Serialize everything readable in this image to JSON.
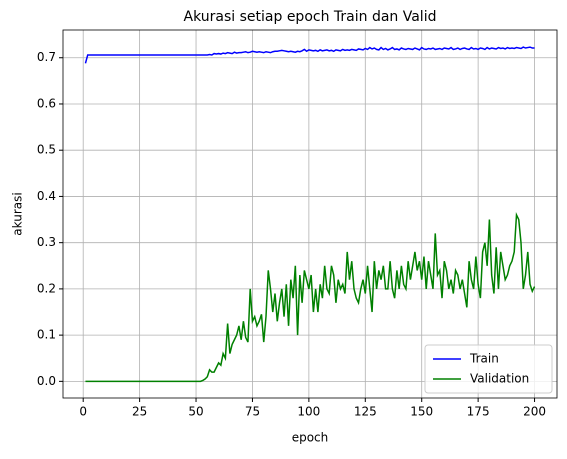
{
  "chart_data": {
    "type": "line",
    "title": "Akurasi setiap epoch Train dan Valid",
    "x_label": "epoch",
    "y_label": "akurasi",
    "x": [
      1,
      2,
      3,
      4,
      5,
      6,
      7,
      8,
      9,
      10,
      11,
      12,
      13,
      14,
      15,
      16,
      17,
      18,
      19,
      20,
      21,
      22,
      23,
      24,
      25,
      26,
      27,
      28,
      29,
      30,
      31,
      32,
      33,
      34,
      35,
      36,
      37,
      38,
      39,
      40,
      41,
      42,
      43,
      44,
      45,
      46,
      47,
      48,
      49,
      50,
      51,
      52,
      53,
      54,
      55,
      56,
      57,
      58,
      59,
      60,
      61,
      62,
      63,
      64,
      65,
      66,
      67,
      68,
      69,
      70,
      71,
      72,
      73,
      74,
      75,
      76,
      77,
      78,
      79,
      80,
      81,
      82,
      83,
      84,
      85,
      86,
      87,
      88,
      89,
      90,
      91,
      92,
      93,
      94,
      95,
      96,
      97,
      98,
      99,
      100,
      101,
      102,
      103,
      104,
      105,
      106,
      107,
      108,
      109,
      110,
      111,
      112,
      113,
      114,
      115,
      116,
      117,
      118,
      119,
      120,
      121,
      122,
      123,
      124,
      125,
      126,
      127,
      128,
      129,
      130,
      131,
      132,
      133,
      134,
      135,
      136,
      137,
      138,
      139,
      140,
      141,
      142,
      143,
      144,
      145,
      146,
      147,
      148,
      149,
      150,
      151,
      152,
      153,
      154,
      155,
      156,
      157,
      158,
      159,
      160,
      161,
      162,
      163,
      164,
      165,
      166,
      167,
      168,
      169,
      170,
      171,
      172,
      173,
      174,
      175,
      176,
      177,
      178,
      179,
      180,
      181,
      182,
      183,
      184,
      185,
      186,
      187,
      188,
      189,
      190,
      191,
      192,
      193,
      194,
      195,
      196,
      197,
      198,
      199,
      200
    ],
    "series": [
      {
        "name": "Train",
        "color": "#0000ff",
        "values": [
          0.688,
          0.706,
          0.706,
          0.706,
          0.706,
          0.706,
          0.706,
          0.706,
          0.706,
          0.706,
          0.706,
          0.706,
          0.706,
          0.706,
          0.706,
          0.706,
          0.706,
          0.706,
          0.706,
          0.706,
          0.706,
          0.706,
          0.706,
          0.706,
          0.706,
          0.706,
          0.706,
          0.706,
          0.706,
          0.706,
          0.706,
          0.706,
          0.706,
          0.706,
          0.706,
          0.706,
          0.706,
          0.706,
          0.706,
          0.706,
          0.706,
          0.706,
          0.706,
          0.706,
          0.706,
          0.706,
          0.706,
          0.706,
          0.706,
          0.706,
          0.706,
          0.706,
          0.706,
          0.706,
          0.706,
          0.707,
          0.706,
          0.709,
          0.708,
          0.709,
          0.708,
          0.71,
          0.709,
          0.711,
          0.71,
          0.709,
          0.712,
          0.71,
          0.711,
          0.711,
          0.712,
          0.713,
          0.711,
          0.712,
          0.714,
          0.713,
          0.712,
          0.713,
          0.712,
          0.711,
          0.713,
          0.712,
          0.711,
          0.713,
          0.714,
          0.714,
          0.715,
          0.716,
          0.715,
          0.714,
          0.713,
          0.714,
          0.713,
          0.712,
          0.714,
          0.713,
          0.715,
          0.718,
          0.714,
          0.717,
          0.716,
          0.715,
          0.716,
          0.714,
          0.717,
          0.715,
          0.716,
          0.717,
          0.715,
          0.716,
          0.714,
          0.717,
          0.716,
          0.715,
          0.718,
          0.716,
          0.717,
          0.716,
          0.718,
          0.717,
          0.716,
          0.719,
          0.718,
          0.717,
          0.72,
          0.718,
          0.722,
          0.719,
          0.721,
          0.718,
          0.717,
          0.722,
          0.718,
          0.72,
          0.717,
          0.719,
          0.722,
          0.718,
          0.719,
          0.717,
          0.721,
          0.719,
          0.718,
          0.72,
          0.719,
          0.718,
          0.721,
          0.719,
          0.717,
          0.722,
          0.719,
          0.718,
          0.72,
          0.719,
          0.721,
          0.718,
          0.719,
          0.72,
          0.718,
          0.721,
          0.72,
          0.719,
          0.722,
          0.718,
          0.719,
          0.721,
          0.718,
          0.72,
          0.721,
          0.719,
          0.718,
          0.722,
          0.719,
          0.72,
          0.718,
          0.721,
          0.72,
          0.718,
          0.722,
          0.719,
          0.721,
          0.72,
          0.719,
          0.722,
          0.72,
          0.721,
          0.719,
          0.722,
          0.72,
          0.721,
          0.72,
          0.722,
          0.721,
          0.72,
          0.723,
          0.721,
          0.722,
          0.723,
          0.721,
          0.721
        ]
      },
      {
        "name": "Validation",
        "color": "#008000",
        "values": [
          0,
          0,
          0,
          0,
          0,
          0,
          0,
          0,
          0,
          0,
          0,
          0,
          0,
          0,
          0,
          0,
          0,
          0,
          0,
          0,
          0,
          0,
          0,
          0,
          0,
          0,
          0,
          0,
          0,
          0,
          0,
          0,
          0,
          0,
          0,
          0,
          0,
          0,
          0,
          0,
          0,
          0,
          0,
          0,
          0,
          0,
          0,
          0,
          0,
          0,
          0,
          0,
          0.002,
          0.005,
          0.01,
          0.025,
          0.02,
          0.02,
          0.03,
          0.04,
          0.035,
          0.06,
          0.05,
          0.125,
          0.06,
          0.08,
          0.09,
          0.1,
          0.12,
          0.09,
          0.13,
          0.095,
          0.085,
          0.2,
          0.13,
          0.14,
          0.12,
          0.13,
          0.145,
          0.085,
          0.14,
          0.24,
          0.2,
          0.15,
          0.19,
          0.13,
          0.17,
          0.2,
          0.14,
          0.21,
          0.12,
          0.22,
          0.18,
          0.25,
          0.1,
          0.23,
          0.17,
          0.24,
          0.22,
          0.2,
          0.23,
          0.15,
          0.2,
          0.15,
          0.21,
          0.18,
          0.25,
          0.2,
          0.19,
          0.25,
          0.23,
          0.17,
          0.22,
          0.2,
          0.21,
          0.19,
          0.28,
          0.22,
          0.26,
          0.2,
          0.18,
          0.17,
          0.2,
          0.22,
          0.19,
          0.25,
          0.2,
          0.15,
          0.26,
          0.2,
          0.24,
          0.22,
          0.25,
          0.2,
          0.2,
          0.26,
          0.2,
          0.18,
          0.24,
          0.2,
          0.25,
          0.21,
          0.2,
          0.26,
          0.22,
          0.25,
          0.28,
          0.24,
          0.26,
          0.22,
          0.27,
          0.2,
          0.26,
          0.23,
          0.2,
          0.32,
          0.23,
          0.24,
          0.18,
          0.26,
          0.24,
          0.2,
          0.22,
          0.19,
          0.24,
          0.23,
          0.2,
          0.22,
          0.19,
          0.16,
          0.26,
          0.22,
          0.2,
          0.27,
          0.21,
          0.18,
          0.28,
          0.3,
          0.25,
          0.35,
          0.23,
          0.19,
          0.29,
          0.2,
          0.28,
          0.25,
          0.22,
          0.23,
          0.25,
          0.26,
          0.28,
          0.36,
          0.35,
          0.3,
          0.2,
          0.23,
          0.28,
          0.21,
          0.195,
          0.205
        ]
      }
    ],
    "xlim": [
      -8.95,
      209.95
    ],
    "xticks": [
      0,
      25,
      50,
      75,
      100,
      125,
      150,
      175,
      200
    ],
    "ylim": [
      -0.036,
      0.76
    ],
    "yticks": [
      {
        "value": 0,
        "label": "0.0"
      },
      0.1,
      0.2,
      0.3,
      0.4,
      0.5,
      0.6,
      0.7
    ],
    "grid": true,
    "legend": "lower right"
  }
}
